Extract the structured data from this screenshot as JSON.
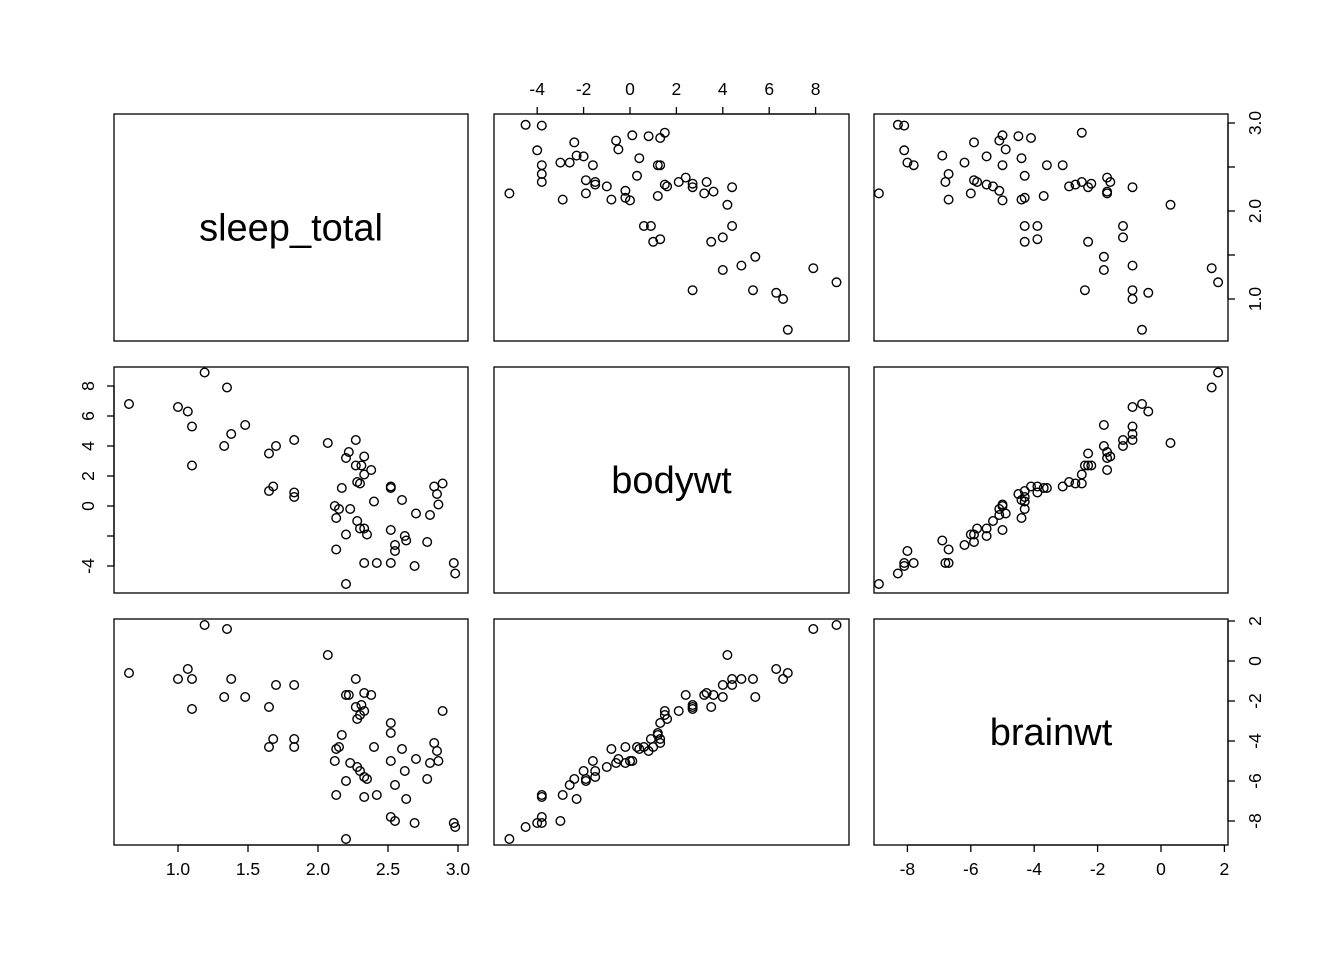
{
  "chart_data": {
    "type": "scatter",
    "plot_kind": "pairs",
    "variables": [
      "sleep_total",
      "bodywt",
      "brainwt"
    ],
    "axis_ticks": {
      "sleep_total": {
        "values": [
          1.0,
          1.5,
          2.0,
          2.5,
          3.0
        ],
        "labels": [
          "1.0",
          "1.5",
          "2.0",
          "2.5",
          "3.0"
        ]
      },
      "bodywt": {
        "values": [
          -4,
          -2,
          0,
          2,
          4,
          6,
          8
        ],
        "labels": [
          "-4",
          "-2",
          "0",
          "2",
          "4",
          "6",
          "8"
        ],
        "labels_left": [
          "-4",
          "0",
          "2",
          "4",
          "6",
          "8"
        ]
      },
      "brainwt": {
        "values": [
          -8,
          -6,
          -4,
          -2,
          0,
          2
        ],
        "labels": [
          "-8",
          "-6",
          "-4",
          "-2",
          "0",
          "2"
        ]
      }
    },
    "axis_ticks_right_sleep": [
      "1.0",
      "2.0",
      "3.0"
    ],
    "ranges": {
      "sleep_total": [
        0.63,
        3.0
      ],
      "bodywt": [
        -5.2,
        8.9
      ],
      "brainwt": [
        -8.9,
        1.85
      ]
    },
    "grid": false,
    "legend": "none",
    "observations": [
      {
        "sleep_total": 2.2,
        "bodywt": -5.2,
        "brainwt": -8.9
      },
      {
        "sleep_total": 2.98,
        "bodywt": -4.5,
        "brainwt": -8.3
      },
      {
        "sleep_total": 2.97,
        "bodywt": -3.8,
        "brainwt": -8.1
      },
      {
        "sleep_total": 2.69,
        "bodywt": -4.0,
        "brainwt": -8.1
      },
      {
        "sleep_total": 2.55,
        "bodywt": -3.0,
        "brainwt": -8.0
      },
      {
        "sleep_total": 2.52,
        "bodywt": -3.8,
        "brainwt": -7.8
      },
      {
        "sleep_total": 2.33,
        "bodywt": -3.8,
        "brainwt": -6.8
      },
      {
        "sleep_total": 2.42,
        "bodywt": -3.8,
        "brainwt": -6.7
      },
      {
        "sleep_total": 2.13,
        "bodywt": -2.9,
        "brainwt": -6.7
      },
      {
        "sleep_total": 2.63,
        "bodywt": -2.3,
        "brainwt": -6.9
      },
      {
        "sleep_total": 2.55,
        "bodywt": -2.6,
        "brainwt": -6.2
      },
      {
        "sleep_total": 2.78,
        "bodywt": -2.4,
        "brainwt": -5.9
      },
      {
        "sleep_total": 2.33,
        "bodywt": -1.5,
        "brainwt": -5.8
      },
      {
        "sleep_total": 2.35,
        "bodywt": -1.9,
        "brainwt": -5.9
      },
      {
        "sleep_total": 2.3,
        "bodywt": -1.5,
        "brainwt": -5.5
      },
      {
        "sleep_total": 2.2,
        "bodywt": -1.9,
        "brainwt": -6.0
      },
      {
        "sleep_total": 2.62,
        "bodywt": -2.0,
        "brainwt": -5.5
      },
      {
        "sleep_total": 2.52,
        "bodywt": -1.6,
        "brainwt": -5.0
      },
      {
        "sleep_total": 2.28,
        "bodywt": -1.0,
        "brainwt": -5.3
      },
      {
        "sleep_total": 2.23,
        "bodywt": -0.2,
        "brainwt": -5.1
      },
      {
        "sleep_total": 2.12,
        "bodywt": 0.0,
        "brainwt": -5.0
      },
      {
        "sleep_total": 2.86,
        "bodywt": 0.1,
        "brainwt": -5.0
      },
      {
        "sleep_total": 2.8,
        "bodywt": -0.6,
        "brainwt": -5.1
      },
      {
        "sleep_total": 2.7,
        "bodywt": -0.5,
        "brainwt": -4.9
      },
      {
        "sleep_total": 2.15,
        "bodywt": -0.2,
        "brainwt": -4.3
      },
      {
        "sleep_total": 2.4,
        "bodywt": 0.3,
        "brainwt": -4.3
      },
      {
        "sleep_total": 2.6,
        "bodywt": 0.4,
        "brainwt": -4.4
      },
      {
        "sleep_total": 2.85,
        "bodywt": 0.8,
        "brainwt": -4.5
      },
      {
        "sleep_total": 2.13,
        "bodywt": -0.8,
        "brainwt": -4.4
      },
      {
        "sleep_total": 1.65,
        "bodywt": 1.0,
        "brainwt": -4.3
      },
      {
        "sleep_total": 1.83,
        "bodywt": 0.6,
        "brainwt": -4.3
      },
      {
        "sleep_total": 2.17,
        "bodywt": 1.2,
        "brainwt": -3.7
      },
      {
        "sleep_total": 2.52,
        "bodywt": 1.2,
        "brainwt": -3.6
      },
      {
        "sleep_total": 1.68,
        "bodywt": 1.3,
        "brainwt": -3.9
      },
      {
        "sleep_total": 1.83,
        "bodywt": 0.9,
        "brainwt": -3.9
      },
      {
        "sleep_total": 2.83,
        "bodywt": 1.3,
        "brainwt": -4.1
      },
      {
        "sleep_total": 2.52,
        "bodywt": 1.3,
        "brainwt": -3.1
      },
      {
        "sleep_total": 2.28,
        "bodywt": 1.6,
        "brainwt": -2.9
      },
      {
        "sleep_total": 2.3,
        "bodywt": 1.5,
        "brainwt": -2.7
      },
      {
        "sleep_total": 2.89,
        "bodywt": 1.5,
        "brainwt": -2.5
      },
      {
        "sleep_total": 2.33,
        "bodywt": 2.1,
        "brainwt": -2.5
      },
      {
        "sleep_total": 2.27,
        "bodywt": 2.7,
        "brainwt": -2.3
      },
      {
        "sleep_total": 2.31,
        "bodywt": 2.7,
        "brainwt": -2.2
      },
      {
        "sleep_total": 2.22,
        "bodywt": 3.6,
        "brainwt": -1.7
      },
      {
        "sleep_total": 2.2,
        "bodywt": 3.2,
        "brainwt": -1.7
      },
      {
        "sleep_total": 2.38,
        "bodywt": 2.4,
        "brainwt": -1.7
      },
      {
        "sleep_total": 2.33,
        "bodywt": 3.3,
        "brainwt": -1.6
      },
      {
        "sleep_total": 1.83,
        "bodywt": 4.4,
        "brainwt": -1.2
      },
      {
        "sleep_total": 2.27,
        "bodywt": 4.4,
        "brainwt": -0.9
      },
      {
        "sleep_total": 1.38,
        "bodywt": 4.8,
        "brainwt": -0.9
      },
      {
        "sleep_total": 1.1,
        "bodywt": 5.3,
        "brainwt": -0.9
      },
      {
        "sleep_total": 1.07,
        "bodywt": 6.3,
        "brainwt": -0.4
      },
      {
        "sleep_total": 2.07,
        "bodywt": 4.2,
        "brainwt": 0.3
      },
      {
        "sleep_total": 1.35,
        "bodywt": 7.9,
        "brainwt": 1.6
      },
      {
        "sleep_total": 1.19,
        "bodywt": 8.9,
        "brainwt": 1.8
      },
      {
        "sleep_total": 1.65,
        "bodywt": 3.5,
        "brainwt": -2.3
      },
      {
        "sleep_total": 1.33,
        "bodywt": 4.0,
        "brainwt": -1.8
      },
      {
        "sleep_total": 1.48,
        "bodywt": 5.4,
        "brainwt": -1.8
      },
      {
        "sleep_total": 1.1,
        "bodywt": 2.7,
        "brainwt": -2.4
      },
      {
        "sleep_total": 1.7,
        "bodywt": 4.0,
        "brainwt": -1.2
      },
      {
        "sleep_total": 0.65,
        "bodywt": 6.8,
        "brainwt": -0.6
      },
      {
        "sleep_total": 1.0,
        "bodywt": 6.6,
        "brainwt": -0.9
      }
    ]
  }
}
